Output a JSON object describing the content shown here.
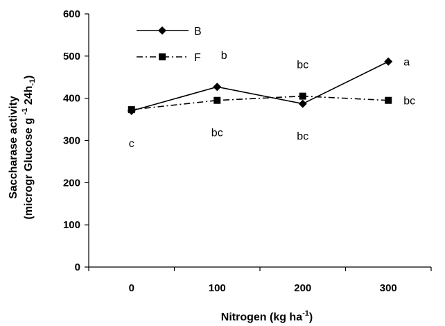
{
  "chart_data": {
    "type": "line",
    "categories": [
      "0",
      "100",
      "200",
      "300"
    ],
    "x": [
      0,
      100,
      200,
      300
    ],
    "xlabel": "Nitrogen (kg ha",
    "xlabel_sup": "-1",
    "xlabel_close": ")",
    "ylabel_line1": "Saccharase activity",
    "ylabel_line2_parts": [
      "(microgr Glucose g ",
      "-1",
      " 24h",
      "-1",
      ")"
    ],
    "ylim": [
      0,
      600
    ],
    "yticks": [
      0,
      100,
      200,
      300,
      400,
      500,
      600
    ],
    "grid": false,
    "legend_position": "top-left",
    "series": [
      {
        "name": "B",
        "marker": "diamond",
        "line_style": "solid",
        "values": [
          370,
          427,
          387,
          487
        ],
        "labels": [
          "c",
          "b",
          "bc",
          "a"
        ],
        "label_pos": [
          "below",
          "above",
          "below",
          "right"
        ]
      },
      {
        "name": "F",
        "marker": "square",
        "line_style": "dashdot",
        "values": [
          373,
          395,
          405,
          395
        ],
        "labels": [
          "",
          "bc",
          "bc",
          "bc"
        ],
        "label_pos": [
          "",
          "below",
          "above",
          "right"
        ]
      }
    ]
  }
}
